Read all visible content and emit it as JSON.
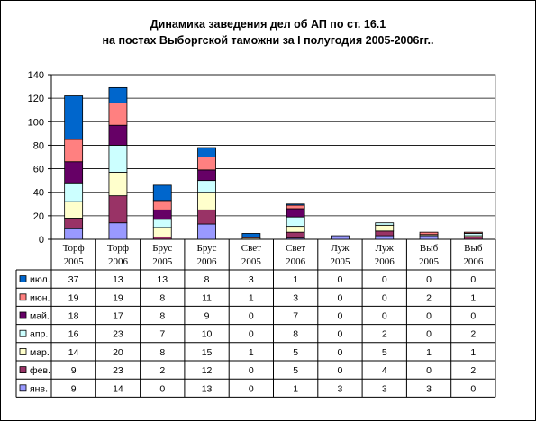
{
  "chart_data": {
    "type": "bar",
    "stacked": true,
    "title_line1": "Динамика заведения дел об АП по ст. 16.1",
    "title_line2": "на постах Выборгской таможни за I полугодия 2005-2006гг..",
    "categories": [
      [
        "Торф",
        "2005"
      ],
      [
        "Торф",
        "2006"
      ],
      [
        "Брус",
        "2005"
      ],
      [
        "Брус",
        "2006"
      ],
      [
        "Свет",
        "2005"
      ],
      [
        "Свет",
        "2006"
      ],
      [
        "Луж",
        "2005"
      ],
      [
        "Луж",
        "2006"
      ],
      [
        "Выб",
        "2005"
      ],
      [
        "Выб",
        "2006"
      ]
    ],
    "ylim": [
      0,
      140
    ],
    "yticks": [
      "0",
      "20",
      "40",
      "60",
      "80",
      "100",
      "120",
      "140"
    ],
    "grid": true,
    "series": [
      {
        "name": "янв.",
        "color": "#9999FF",
        "values": [
          9,
          14,
          0,
          13,
          0,
          1,
          3,
          3,
          3,
          0
        ]
      },
      {
        "name": "фев.",
        "color": "#993366",
        "values": [
          9,
          23,
          2,
          12,
          0,
          5,
          0,
          4,
          0,
          2
        ]
      },
      {
        "name": "мар.",
        "color": "#FFFFCC",
        "values": [
          14,
          20,
          8,
          15,
          1,
          5,
          0,
          5,
          1,
          1
        ]
      },
      {
        "name": "апр.",
        "color": "#CCFFFF",
        "values": [
          16,
          23,
          7,
          10,
          0,
          8,
          0,
          2,
          0,
          2
        ]
      },
      {
        "name": "май.",
        "color": "#660066",
        "values": [
          18,
          17,
          8,
          9,
          0,
          7,
          0,
          0,
          0,
          0
        ]
      },
      {
        "name": "июн.",
        "color": "#FF8080",
        "values": [
          19,
          19,
          8,
          11,
          1,
          3,
          0,
          0,
          2,
          1
        ]
      },
      {
        "name": "июл.",
        "color": "#0066CC",
        "values": [
          37,
          13,
          13,
          8,
          3,
          1,
          0,
          0,
          0,
          0
        ]
      }
    ]
  }
}
